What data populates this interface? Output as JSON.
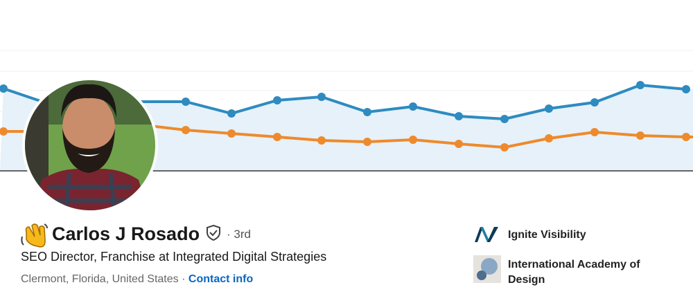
{
  "profile": {
    "name": "Carlos J Rosado",
    "degree": "· 3rd",
    "headline": "SEO Director, Franchise at Integrated Digital Strategies",
    "location": "Clermont, Florida, United States",
    "separator": "·",
    "contact": "Contact info"
  },
  "experience": [
    {
      "company": "Ignite Visibility"
    },
    {
      "company": "International Academy of Design",
      "lines": [
        "International Academy of",
        "Design"
      ]
    }
  ]
}
